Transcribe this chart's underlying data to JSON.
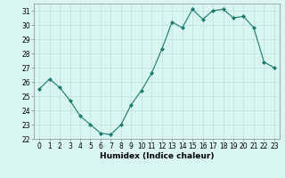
{
  "x": [
    0,
    1,
    2,
    3,
    4,
    5,
    6,
    7,
    8,
    9,
    10,
    11,
    12,
    13,
    14,
    15,
    16,
    17,
    18,
    19,
    20,
    21,
    22,
    23
  ],
  "y": [
    25.5,
    26.2,
    25.6,
    24.7,
    23.6,
    23.0,
    22.4,
    22.3,
    23.0,
    24.4,
    25.4,
    26.6,
    28.3,
    30.2,
    29.8,
    31.1,
    30.4,
    31.0,
    31.1,
    30.5,
    30.6,
    29.8,
    27.4,
    27.0
  ],
  "line_color": "#1a7a6e",
  "marker": "D",
  "marker_size": 2.0,
  "bg_color": "#d8f5f0",
  "grid_color": "#c0ddd8",
  "xlabel": "Humidex (Indice chaleur)",
  "xlim": [
    -0.5,
    23.5
  ],
  "ylim": [
    22,
    31.5
  ],
  "yticks": [
    22,
    23,
    24,
    25,
    26,
    27,
    28,
    29,
    30,
    31
  ],
  "xticks": [
    0,
    1,
    2,
    3,
    4,
    5,
    6,
    7,
    8,
    9,
    10,
    11,
    12,
    13,
    14,
    15,
    16,
    17,
    18,
    19,
    20,
    21,
    22,
    23
  ],
  "tick_fontsize": 5.5,
  "xlabel_fontsize": 6.5,
  "linewidth": 0.8
}
